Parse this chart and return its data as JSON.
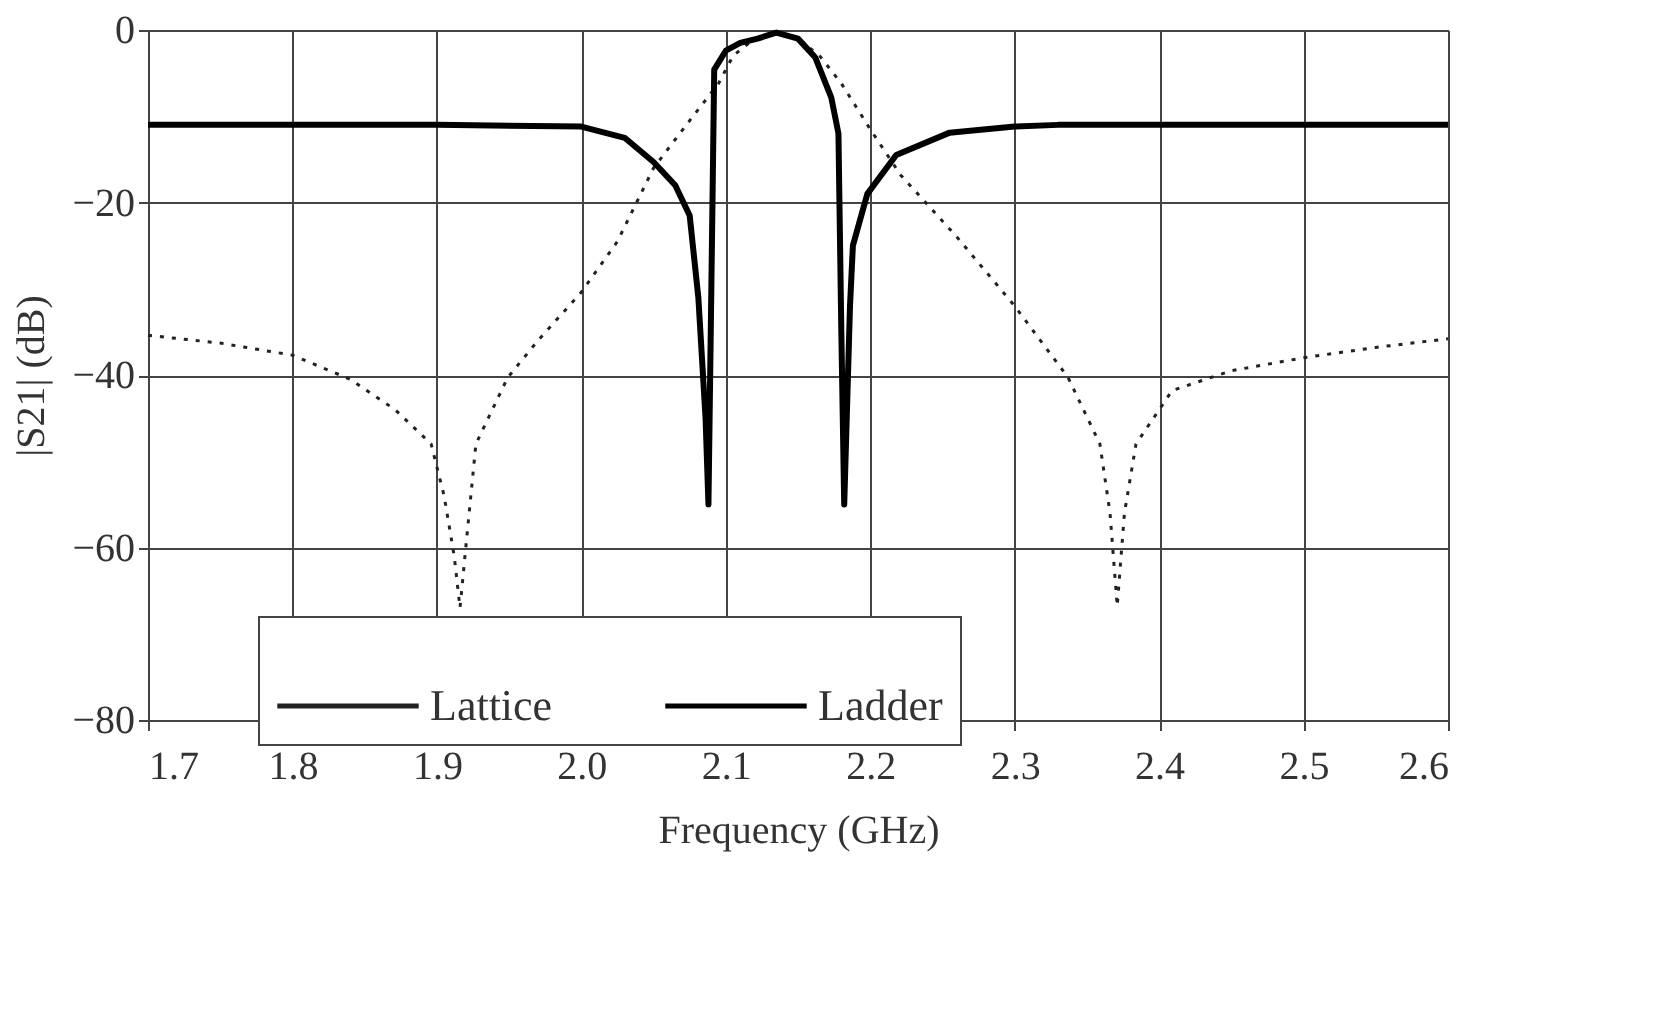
{
  "chart_data": {
    "type": "line",
    "xlabel": "Frequency (GHz)",
    "ylabel": "|S21| (dB)",
    "xlim": [
      1.7,
      2.6
    ],
    "ylim": [
      -80,
      0
    ],
    "xticks": [
      {
        "value": 1.7,
        "label": "1.7"
      },
      {
        "value": 1.8,
        "label": "1.8"
      },
      {
        "value": 1.9,
        "label": "1.9"
      },
      {
        "value": 2.0,
        "label": "2.0"
      },
      {
        "value": 2.1,
        "label": "2.1"
      },
      {
        "value": 2.2,
        "label": "2.2"
      },
      {
        "value": 2.3,
        "label": "2.3"
      },
      {
        "value": 2.4,
        "label": "2.4"
      },
      {
        "value": 2.5,
        "label": "2.5"
      },
      {
        "value": 2.6,
        "label": "2.6"
      }
    ],
    "yticks": [
      0,
      -20,
      -40,
      -60,
      -80
    ],
    "grid": true,
    "legend": "bottom",
    "marker": "none",
    "series": [
      {
        "name": "Lattice",
        "color": "#222222",
        "line_style": "dotted",
        "x": [
          1.7,
          1.75,
          1.8,
          1.84,
          1.871,
          1.896,
          1.905,
          1.912,
          1.916,
          1.92,
          1.927,
          1.949,
          1.97,
          2.0,
          2.025,
          2.05,
          2.075,
          2.095,
          2.105,
          2.12,
          2.135,
          2.15,
          2.165,
          2.18,
          2.2,
          2.221,
          2.26,
          2.3,
          2.337,
          2.359,
          2.366,
          2.371,
          2.376,
          2.384,
          2.409,
          2.45,
          2.5,
          2.55,
          2.6
        ],
        "values": [
          -35.4,
          -36.3,
          -37.7,
          -40.5,
          -44,
          -48,
          -54,
          -61,
          -67,
          -60,
          -48,
          -40.3,
          -36,
          -30.4,
          -24.5,
          -16,
          -10.5,
          -6.2,
          -3,
          -1,
          -0.3,
          -1,
          -3,
          -6.2,
          -11.5,
          -16.8,
          -24,
          -32,
          -40.3,
          -48,
          -56,
          -66.8,
          -56,
          -48,
          -41.8,
          -39.5,
          -38,
          -36.8,
          -35.8
        ]
      },
      {
        "name": "Ladder",
        "color": "#000000",
        "line_style": "solid",
        "x": [
          1.7,
          1.8,
          1.9,
          2.0,
          2.03,
          2.05,
          2.065,
          2.075,
          2.081,
          2.086,
          2.088,
          2.09,
          2.092,
          2.1,
          2.11,
          2.122,
          2.135,
          2.15,
          2.162,
          2.173,
          2.178,
          2.18,
          2.182,
          2.186,
          2.188,
          2.198,
          2.218,
          2.255,
          2.3,
          2.33,
          2.4,
          2.5,
          2.6
        ],
        "values": [
          -11,
          -11,
          -11,
          -11.2,
          -12.5,
          -15.3,
          -18,
          -21.5,
          -31,
          -45,
          -55,
          -30,
          -4.6,
          -2.4,
          -1.5,
          -1,
          -0.3,
          -1,
          -3.2,
          -7.8,
          -12,
          -35,
          -55,
          -32,
          -25,
          -19,
          -14.5,
          -11.9,
          -11.2,
          -11,
          -11,
          -11,
          -11
        ]
      }
    ]
  }
}
